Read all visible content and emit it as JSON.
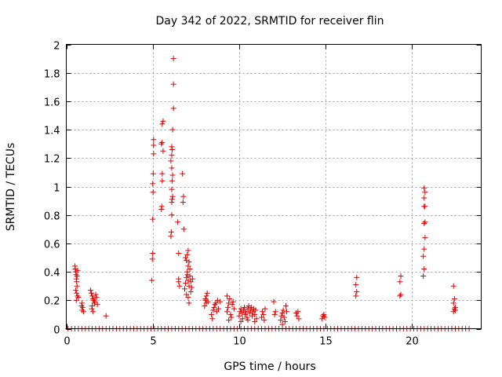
{
  "chart_data": {
    "type": "scatter",
    "title": "Day 342 of 2022, SRMTID for receiver flin",
    "xlabel": "GPS time / hours",
    "ylabel": "SRMTID / TECUs",
    "xlim": [
      0,
      24
    ],
    "ylim": [
      0,
      2
    ],
    "xticks": [
      0,
      5,
      10,
      15,
      20
    ],
    "yticks": [
      0,
      0.2,
      0.4,
      0.6,
      0.8,
      1,
      1.2,
      1.4,
      1.6,
      1.8,
      2
    ],
    "grid": true,
    "marker": "+",
    "color": "#e00000",
    "series": [
      {
        "name": "SRMTID",
        "points": [
          [
            0.5,
            0.44
          ],
          [
            0.52,
            0.42
          ],
          [
            0.55,
            0.4
          ],
          [
            0.57,
            0.38
          ],
          [
            0.58,
            0.35
          ],
          [
            0.6,
            0.33
          ],
          [
            0.62,
            0.3
          ],
          [
            0.55,
            0.27
          ],
          [
            0.6,
            0.25
          ],
          [
            0.65,
            0.23
          ],
          [
            0.58,
            0.2
          ],
          [
            0.7,
            0.22
          ],
          [
            0.62,
            0.37
          ],
          [
            0.66,
            0.41
          ],
          [
            0.9,
            0.18
          ],
          [
            0.95,
            0.15
          ],
          [
            0.92,
            0.13
          ],
          [
            1.0,
            0.12
          ],
          [
            0.88,
            0.16
          ],
          [
            1.4,
            0.27
          ],
          [
            1.45,
            0.25
          ],
          [
            1.5,
            0.23
          ],
          [
            1.55,
            0.21
          ],
          [
            1.6,
            0.2
          ],
          [
            1.62,
            0.18
          ],
          [
            1.5,
            0.16
          ],
          [
            1.48,
            0.14
          ],
          [
            1.7,
            0.24
          ],
          [
            1.75,
            0.22
          ],
          [
            1.65,
            0.19
          ],
          [
            1.55,
            0.12
          ],
          [
            1.8,
            0.17
          ],
          [
            2.3,
            0.09
          ],
          [
            4.95,
            0.34
          ],
          [
            4.98,
            0.49
          ],
          [
            5.0,
            0.53
          ],
          [
            5.0,
            0.77
          ],
          [
            5.02,
            0.96
          ],
          [
            5.0,
            1.02
          ],
          [
            5.03,
            1.09
          ],
          [
            5.05,
            1.23
          ],
          [
            5.05,
            1.29
          ],
          [
            5.05,
            1.33
          ],
          [
            5.5,
            0.84
          ],
          [
            5.52,
            0.86
          ],
          [
            5.55,
            1.04
          ],
          [
            5.55,
            1.09
          ],
          [
            5.6,
            1.25
          ],
          [
            5.5,
            1.3
          ],
          [
            5.55,
            1.31
          ],
          [
            5.55,
            1.44
          ],
          [
            5.6,
            1.46
          ],
          [
            6.05,
            0.65
          ],
          [
            6.07,
            0.68
          ],
          [
            6.1,
            0.8
          ],
          [
            6.1,
            0.89
          ],
          [
            6.12,
            0.91
          ],
          [
            6.15,
            0.93
          ],
          [
            6.1,
            0.98
          ],
          [
            6.12,
            1.04
          ],
          [
            6.15,
            1.08
          ],
          [
            6.1,
            1.13
          ],
          [
            6.05,
            1.18
          ],
          [
            6.1,
            1.22
          ],
          [
            6.12,
            1.26
          ],
          [
            6.1,
            1.28
          ],
          [
            6.15,
            1.4
          ],
          [
            6.2,
            1.55
          ],
          [
            6.2,
            1.72
          ],
          [
            6.2,
            1.9
          ],
          [
            6.5,
            0.53
          ],
          [
            6.45,
            0.75
          ],
          [
            6.5,
            0.33
          ],
          [
            6.55,
            0.3
          ],
          [
            6.5,
            0.35
          ],
          [
            6.75,
            0.89
          ],
          [
            6.78,
            0.93
          ],
          [
            6.72,
            1.09
          ],
          [
            6.8,
            0.7
          ],
          [
            6.85,
            0.28
          ],
          [
            6.9,
            0.32
          ],
          [
            6.95,
            0.36
          ],
          [
            7.0,
            0.4
          ],
          [
            7.05,
            0.44
          ],
          [
            6.95,
            0.48
          ],
          [
            7.0,
            0.52
          ],
          [
            7.05,
            0.55
          ],
          [
            7.1,
            0.47
          ],
          [
            6.9,
            0.5
          ],
          [
            7.0,
            0.38
          ],
          [
            7.05,
            0.34
          ],
          [
            6.95,
            0.24
          ],
          [
            7.1,
            0.3
          ],
          [
            7.15,
            0.37
          ],
          [
            7.2,
            0.33
          ],
          [
            7.25,
            0.29
          ],
          [
            7.2,
            0.26
          ],
          [
            7.05,
            0.22
          ],
          [
            7.1,
            0.18
          ],
          [
            7.15,
            0.42
          ],
          [
            7.3,
            0.35
          ],
          [
            8.0,
            0.16
          ],
          [
            8.05,
            0.2
          ],
          [
            8.1,
            0.23
          ],
          [
            8.15,
            0.25
          ],
          [
            8.1,
            0.18
          ],
          [
            8.05,
            0.21
          ],
          [
            8.2,
            0.19
          ],
          [
            8.4,
            0.1
          ],
          [
            8.5,
            0.13
          ],
          [
            8.55,
            0.15
          ],
          [
            8.6,
            0.17
          ],
          [
            8.45,
            0.07
          ],
          [
            8.7,
            0.12
          ],
          [
            8.65,
            0.18
          ],
          [
            8.75,
            0.2
          ],
          [
            8.8,
            0.14
          ],
          [
            8.9,
            0.19
          ],
          [
            9.3,
            0.12
          ],
          [
            9.35,
            0.15
          ],
          [
            9.4,
            0.18
          ],
          [
            9.45,
            0.21
          ],
          [
            9.3,
            0.23
          ],
          [
            9.5,
            0.1
          ],
          [
            9.55,
            0.08
          ],
          [
            9.6,
            0.17
          ],
          [
            9.4,
            0.06
          ],
          [
            9.7,
            0.14
          ],
          [
            9.65,
            0.19
          ],
          [
            10.0,
            0.09
          ],
          [
            10.05,
            0.12
          ],
          [
            10.1,
            0.14
          ],
          [
            10.15,
            0.11
          ],
          [
            10.2,
            0.07
          ],
          [
            10.25,
            0.13
          ],
          [
            10.3,
            0.15
          ],
          [
            10.35,
            0.1
          ],
          [
            10.4,
            0.12
          ],
          [
            10.45,
            0.08
          ],
          [
            10.5,
            0.14
          ],
          [
            10.55,
            0.16
          ],
          [
            10.6,
            0.11
          ],
          [
            10.65,
            0.13
          ],
          [
            10.7,
            0.15
          ],
          [
            10.75,
            0.09
          ],
          [
            10.8,
            0.12
          ],
          [
            10.85,
            0.14
          ],
          [
            10.9,
            0.1
          ],
          [
            10.95,
            0.13
          ],
          [
            11.0,
            0.07
          ],
          [
            10.1,
            0.05
          ],
          [
            10.5,
            0.06
          ],
          [
            10.9,
            0.05
          ],
          [
            11.3,
            0.08
          ],
          [
            11.35,
            0.12
          ],
          [
            11.4,
            0.1
          ],
          [
            11.45,
            0.06
          ],
          [
            11.5,
            0.14
          ],
          [
            12.0,
            0.19
          ],
          [
            12.1,
            0.12
          ],
          [
            12.05,
            0.1
          ],
          [
            12.4,
            0.06
          ],
          [
            12.45,
            0.09
          ],
          [
            12.5,
            0.11
          ],
          [
            12.55,
            0.13
          ],
          [
            12.6,
            0.08
          ],
          [
            12.65,
            0.05
          ],
          [
            12.7,
            0.16
          ],
          [
            12.75,
            0.12
          ],
          [
            12.5,
            0.03
          ],
          [
            13.3,
            0.11
          ],
          [
            13.35,
            0.09
          ],
          [
            13.4,
            0.12
          ],
          [
            13.45,
            0.07
          ],
          [
            14.8,
            0.07
          ],
          [
            14.85,
            0.09
          ],
          [
            14.9,
            0.1
          ],
          [
            14.95,
            0.08
          ],
          [
            16.75,
            0.23
          ],
          [
            16.8,
            0.26
          ],
          [
            16.75,
            0.31
          ],
          [
            16.8,
            0.36
          ],
          [
            19.3,
            0.23
          ],
          [
            19.35,
            0.24
          ],
          [
            19.3,
            0.33
          ],
          [
            19.35,
            0.37
          ],
          [
            20.65,
            0.37
          ],
          [
            20.7,
            0.42
          ],
          [
            20.65,
            0.51
          ],
          [
            20.7,
            0.56
          ],
          [
            20.75,
            0.64
          ],
          [
            20.7,
            0.74
          ],
          [
            20.75,
            0.75
          ],
          [
            20.7,
            0.86
          ],
          [
            20.75,
            0.86
          ],
          [
            20.7,
            0.92
          ],
          [
            20.75,
            0.96
          ],
          [
            20.7,
            0.99
          ],
          [
            22.4,
            0.12
          ],
          [
            22.45,
            0.14
          ],
          [
            22.5,
            0.13
          ],
          [
            22.4,
            0.18
          ],
          [
            22.45,
            0.21
          ],
          [
            22.4,
            0.3
          ],
          [
            22.5,
            0.15
          ]
        ],
        "zero_times": [
          0.1,
          0.3,
          0.5,
          0.7,
          0.9,
          1.1,
          1.3,
          1.5,
          1.7,
          1.9,
          2.1,
          2.3,
          2.5,
          2.7,
          2.9,
          3.1,
          3.3,
          3.5,
          3.7,
          3.9,
          4.1,
          4.3,
          4.5,
          4.7,
          4.9,
          5.1,
          5.3,
          5.5,
          5.7,
          5.9,
          6.1,
          6.3,
          6.5,
          6.7,
          6.9,
          7.1,
          7.3,
          7.5,
          7.7,
          7.9,
          8.1,
          8.3,
          8.5,
          8.7,
          8.9,
          9.1,
          9.3,
          9.5,
          9.7,
          9.9,
          10.1,
          10.3,
          10.5,
          10.7,
          10.9,
          11.1,
          11.3,
          11.5,
          11.7,
          11.9,
          12.1,
          12.3,
          12.5,
          12.7,
          12.9,
          13.1,
          13.3,
          13.5,
          13.7,
          13.9,
          14.1,
          14.3,
          14.5,
          14.7,
          14.9,
          15.1,
          15.3,
          15.5,
          15.7,
          15.9,
          16.1,
          16.3,
          16.5,
          16.7,
          16.9,
          17.1,
          17.3,
          17.5,
          17.7,
          17.9,
          18.1,
          18.3,
          18.5,
          18.7,
          18.9,
          19.1,
          19.3,
          19.5,
          19.7,
          19.9,
          20.1,
          20.3,
          20.5,
          20.7,
          20.9,
          21.1,
          21.3,
          21.5,
          21.7,
          21.9,
          22.1,
          22.3,
          22.5,
          22.7,
          22.9,
          23.1,
          23.3
        ]
      }
    ]
  }
}
